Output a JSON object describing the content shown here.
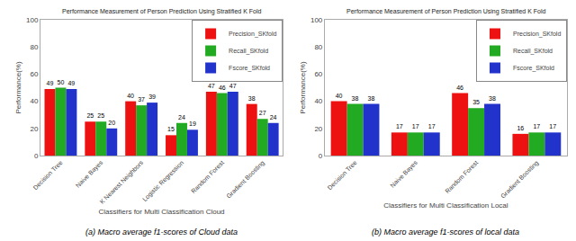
{
  "chart_data": [
    {
      "type": "bar",
      "title": "Performance Measurement of Person Prediction Using Stratified K Fold",
      "xlabel": "Classifiers for Multi Classification Cloud",
      "ylabel": "Performance(%)",
      "categories": [
        "Decision Tree",
        "Naive Bayes",
        "K Nearest Neighbors",
        "Logistic Regression",
        "Random Forest",
        "Gradient Boosting"
      ],
      "series": [
        {
          "name": "Precision_SKfold",
          "color": "#ee1111",
          "values": [
            49,
            25,
            40,
            15,
            47,
            38
          ]
        },
        {
          "name": "Recall_SKfold",
          "color": "#22aa22",
          "values": [
            50,
            25,
            37,
            24,
            46,
            27
          ]
        },
        {
          "name": "Fscore_SKfold",
          "color": "#2233cc",
          "values": [
            49,
            20,
            39,
            19,
            47,
            24
          ]
        }
      ],
      "ylim": [
        0,
        100
      ],
      "yticks": [
        0,
        20,
        40,
        60,
        80,
        100
      ],
      "grid": false,
      "legend": "upper right",
      "data_labels": true,
      "annotations": [
        "(a) Macro average f1-scores of Cloud data"
      ]
    },
    {
      "type": "bar",
      "title": "Performance Measurement of Person Prediction Using Stratified K Fold",
      "xlabel": "Classifiers for Multi Classification Local",
      "ylabel": "Performance(%)",
      "categories": [
        "Decision Tree",
        "Naive Bayes",
        "Random Forest",
        "Gradient Boosting"
      ],
      "series": [
        {
          "name": "Precision_SKfold",
          "color": "#ee1111",
          "values": [
            40,
            17,
            46,
            16
          ]
        },
        {
          "name": "Recall_SKfold",
          "color": "#22aa22",
          "values": [
            38,
            17,
            35,
            17
          ]
        },
        {
          "name": "Fscore_SKfold",
          "color": "#2233cc",
          "values": [
            38,
            17,
            38,
            17
          ]
        }
      ],
      "ylim": [
        0,
        100
      ],
      "yticks": [
        0,
        20,
        40,
        60,
        80,
        100
      ],
      "grid": false,
      "legend": "upper right",
      "data_labels": true,
      "annotations": [
        "(b) Macro average f1-scores of local data"
      ]
    }
  ]
}
